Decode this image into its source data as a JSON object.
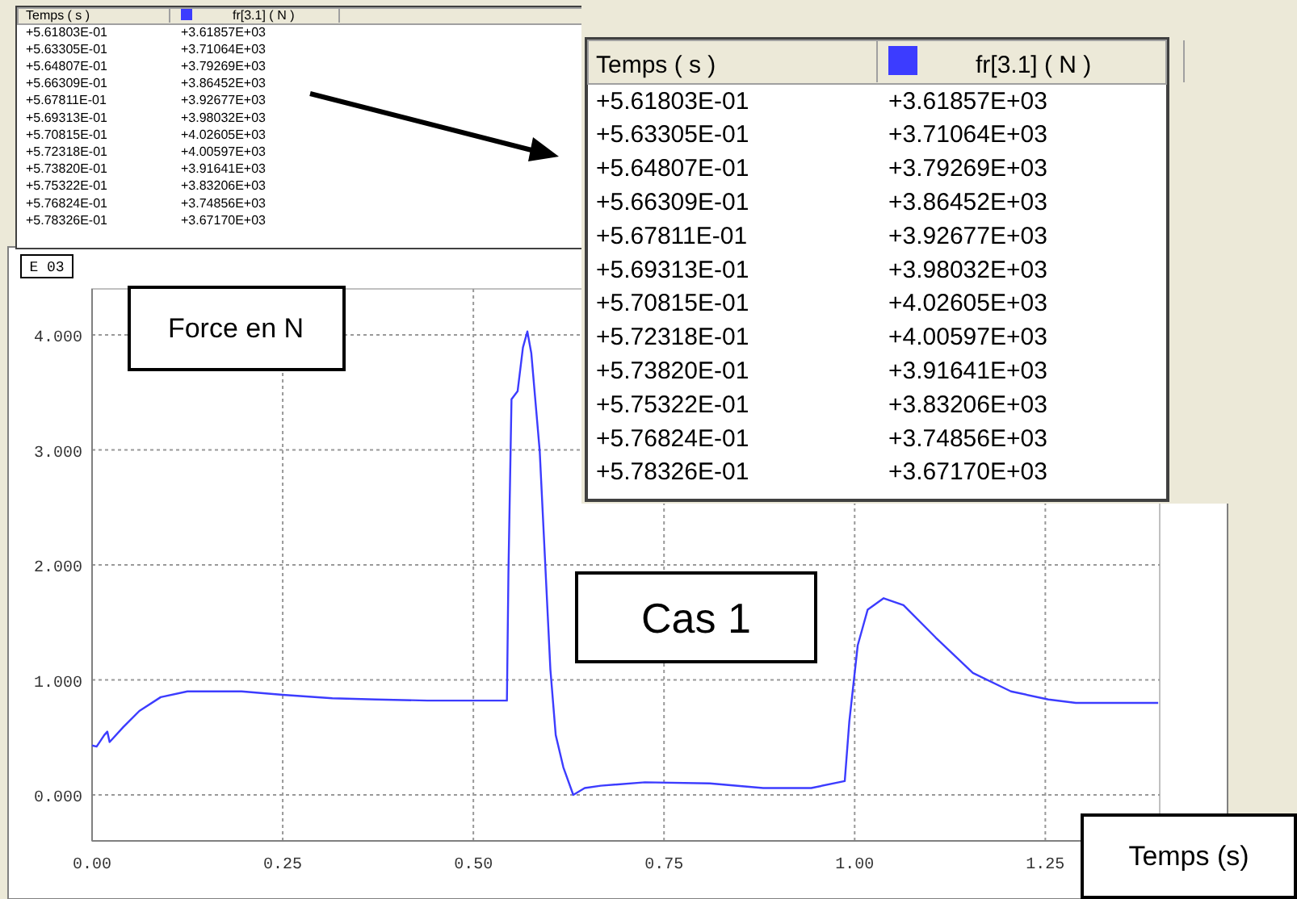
{
  "chart_data": [
    {
      "type": "line",
      "xlabel": "Temps (s)",
      "ylabel": "Force en N",
      "annotations": [
        "Cas 1",
        "E 03"
      ],
      "xlim": [
        0,
        1.4
      ],
      "ylim": [
        -0.4,
        4.4
      ],
      "xticks": [
        {
          "value": 0,
          "label": "0.00"
        },
        {
          "value": 0.25,
          "label": "0.25"
        },
        {
          "value": 0.5,
          "label": "0.50"
        },
        {
          "value": 0.75,
          "label": "0.75"
        },
        {
          "value": 1,
          "label": "1.00"
        },
        {
          "value": 1.25,
          "label": "1.25"
        }
      ],
      "yticks": [
        {
          "value": 0,
          "label": "0.000"
        },
        {
          "value": 1,
          "label": "1.000"
        },
        {
          "value": 2,
          "label": "2.000"
        },
        {
          "value": 3,
          "label": "3.000"
        },
        {
          "value": 4,
          "label": "4.000"
        }
      ],
      "grid": true,
      "marker": "none",
      "line_style": "solid",
      "series": [
        {
          "color": "#3c3cff",
          "x": [
            0,
            0.006,
            0.016,
            0.02,
            0.023,
            0.041,
            0.062,
            0.09,
            0.125,
            0.16,
            0.196,
            0.25,
            0.315,
            0.372,
            0.44,
            0.544,
            0.546,
            0.55,
            0.558,
            0.565,
            0.5708,
            0.576,
            0.587,
            0.594,
            0.601,
            0.608,
            0.618,
            0.631,
            0.646,
            0.667,
            0.725,
            0.81,
            0.88,
            0.943,
            0.987,
            0.993,
            1.004,
            1.017,
            1.038,
            1.064,
            1.106,
            1.155,
            1.205,
            1.254,
            1.29,
            1.398
          ],
          "values": [
            0.43,
            0.42,
            0.52,
            0.55,
            0.46,
            0.59,
            0.73,
            0.85,
            0.9,
            0.9,
            0.9,
            0.87,
            0.84,
            0.83,
            0.82,
            0.82,
            1.94,
            3.44,
            3.51,
            3.89,
            4.03,
            3.84,
            2.99,
            2.04,
            1.09,
            0.52,
            0.24,
            0,
            0.06,
            0.08,
            0.11,
            0.1,
            0.06,
            0.06,
            0.12,
            0.64,
            1.3,
            1.61,
            1.71,
            1.65,
            1.37,
            1.06,
            0.9,
            0.83,
            0.8,
            0.8
          ]
        }
      ]
    },
    {
      "type": "other",
      "annotations": [
        "Temps ( s )",
        "fr[3.1] ( N )",
        "+5.61803E-01",
        "+3.61857E+03",
        "+5.63305E-01",
        "+3.71064E+03",
        "+5.64807E-01",
        "+3.79269E+03",
        "+5.66309E-01",
        "+3.86452E+03",
        "+5.67811E-01",
        "+3.92677E+03",
        "+5.69313E-01",
        "+3.98032E+03",
        "+5.70815E-01",
        "+4.02605E+03",
        "+5.72318E-01",
        "+4.00597E+03",
        "+5.73820E-01",
        "+3.91641E+03",
        "+5.75322E-01",
        "+3.83206E+03",
        "+5.76824E-01",
        "+3.74856E+03",
        "+5.78326E-01",
        "+3.67170E+03"
      ]
    },
    {
      "type": "other",
      "annotations": [
        "Temps ( s )",
        "fr[3.1] ( N )",
        "+5.61803E-01",
        "+3.61857E+03",
        "+5.63305E-01",
        "+3.71064E+03",
        "+5.64807E-01",
        "+3.79269E+03",
        "+5.66309E-01",
        "+3.86452E+03",
        "+5.67811E-01",
        "+3.92677E+03",
        "+5.69313E-01",
        "+3.98032E+03",
        "+5.70815E-01",
        "+4.02605E+03",
        "+5.72318E-01",
        "+4.00597E+03",
        "+5.73820E-01",
        "+3.91641E+03",
        "+5.75322E-01",
        "+3.83206E+03",
        "+5.76824E-01",
        "+3.74856E+03",
        "+5.78326E-01",
        "+3.67170E+03"
      ]
    }
  ]
}
